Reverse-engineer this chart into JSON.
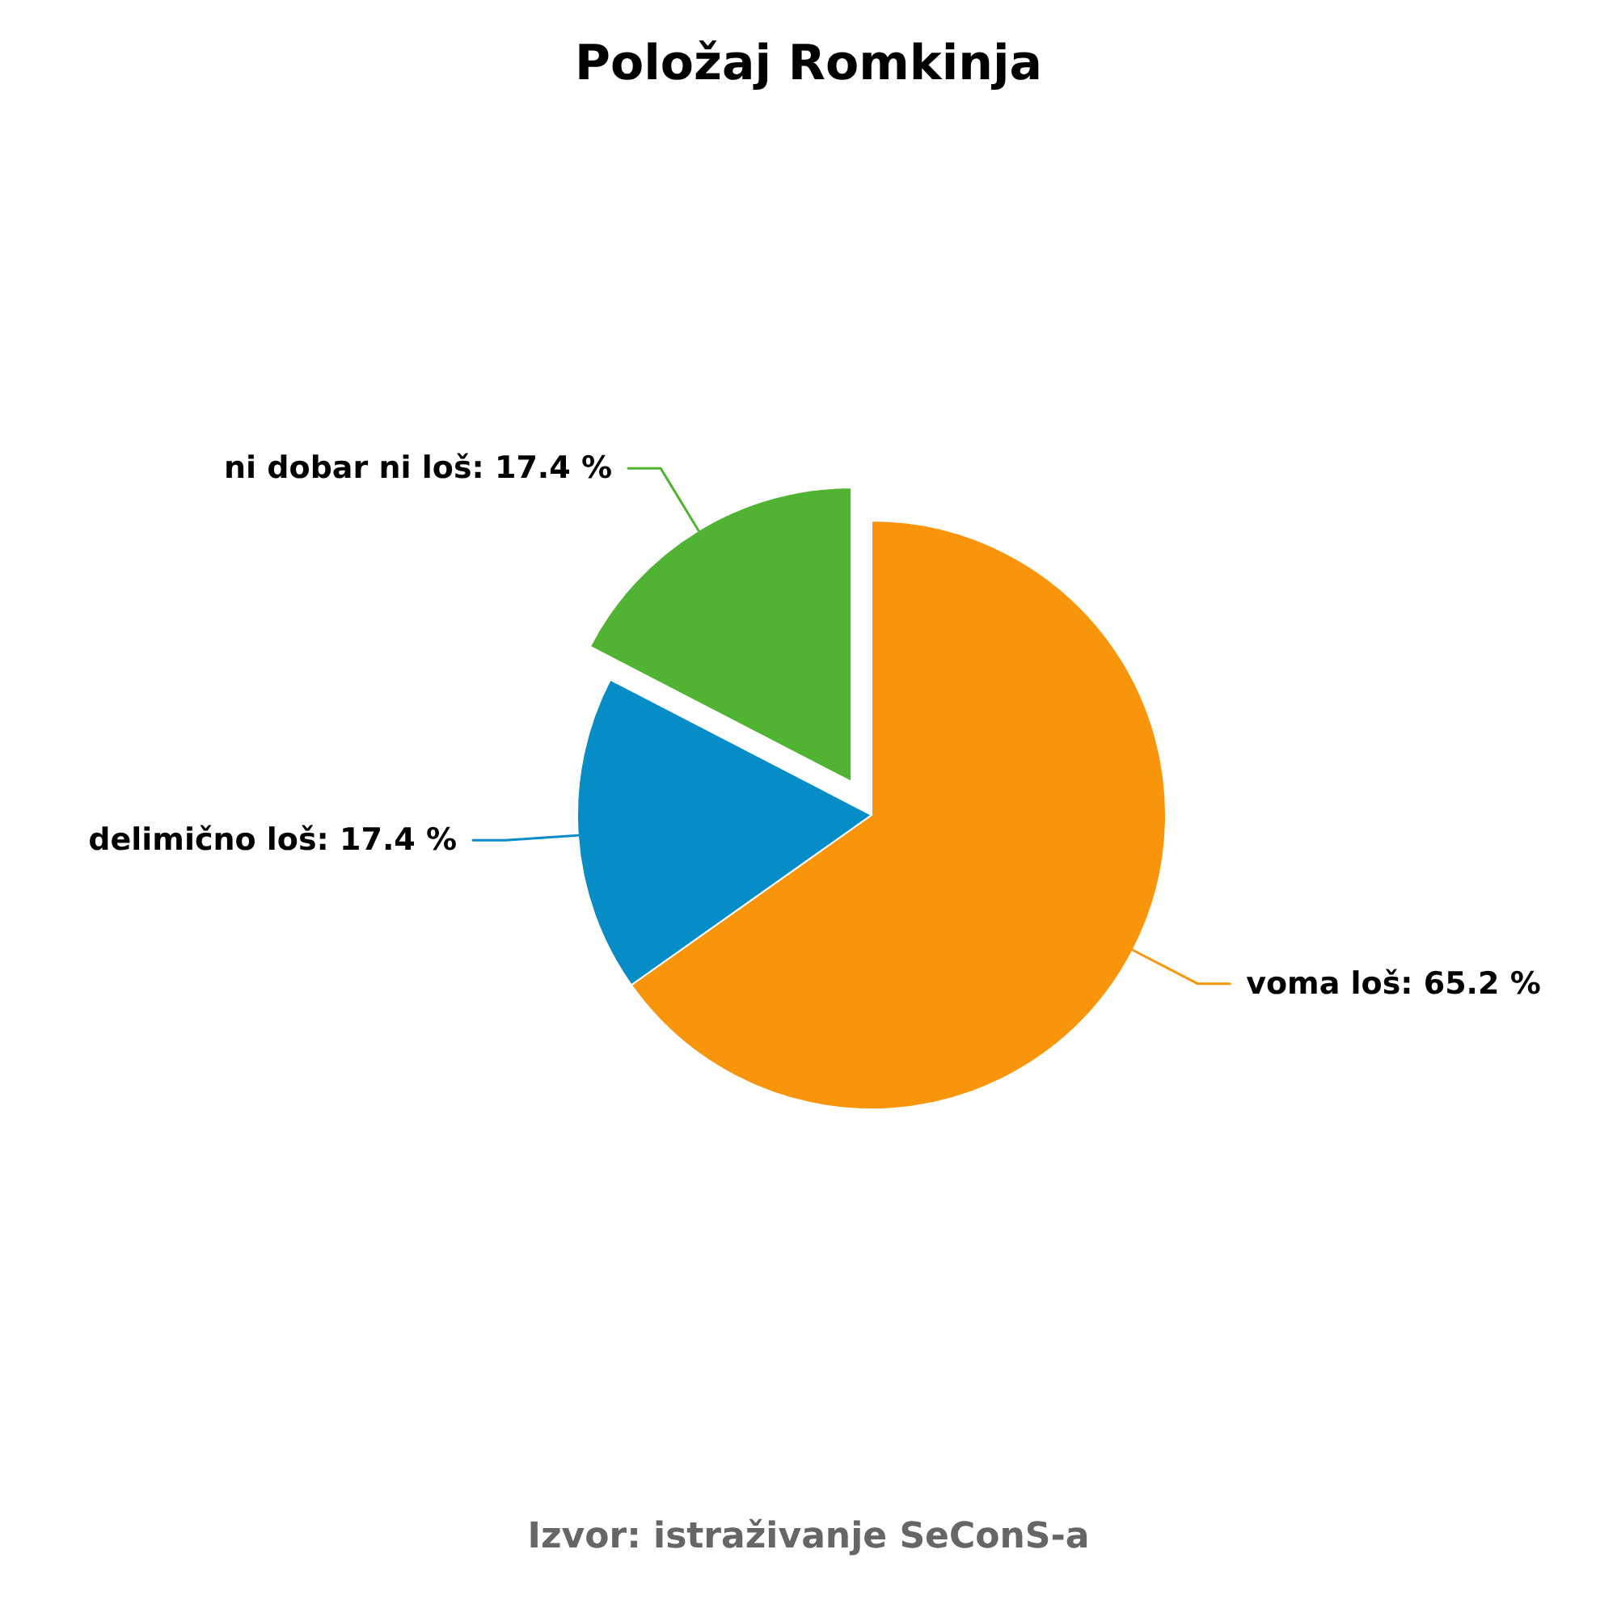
{
  "chart_data": {
    "type": "pie",
    "title": "Položaj Romkinja",
    "categories": [
      "voma loš",
      "delimično loš",
      "ni dobar ni loš"
    ],
    "values": [
      65.2,
      17.4,
      17.4
    ],
    "colors": [
      "#f8950a",
      "#068dc7",
      "#50b432"
    ],
    "value_labels": [
      "65.2 %",
      "17.4 %",
      "17.4 %"
    ],
    "annotations": [
      "Izvor: istraživanje SeConS-a"
    ]
  }
}
